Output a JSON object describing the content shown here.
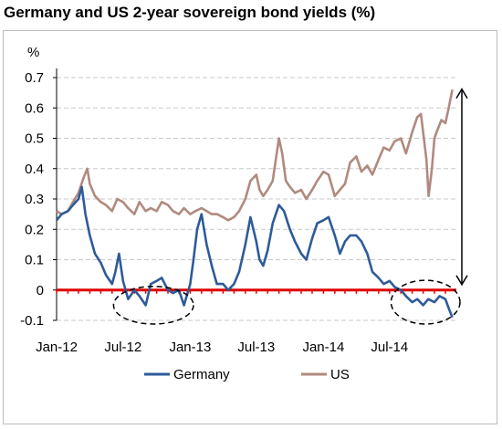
{
  "chart_data": {
    "type": "line",
    "title": "Germany and US 2-year sovereign bond yields (%)",
    "ylabel": "%",
    "xlabel": "",
    "ylim": [
      -0.1,
      0.7
    ],
    "yticks": [
      -0.1,
      0,
      0.1,
      0.2,
      0.3,
      0.4,
      0.5,
      0.6,
      0.7
    ],
    "ytick_labels": [
      "-0.1",
      "0",
      "0.1",
      "0.2",
      "0.3",
      "0.4",
      "0.5",
      "0.6",
      "0.7"
    ],
    "xlim": [
      "2012-01-01",
      "2014-12-31"
    ],
    "xticks": [
      "2012-01-01",
      "2012-07-01",
      "2013-01-01",
      "2013-07-01",
      "2014-01-01",
      "2014-07-01"
    ],
    "xtick_labels": [
      "Jan-12",
      "Jul-12",
      "Jan-13",
      "Jul-13",
      "Jan-14",
      "Jul-14"
    ],
    "grid": "horizontal dashed",
    "legend_position": "bottom",
    "zero_line_color": "#e00000",
    "series": [
      {
        "name": "Germany",
        "color": "#2e5b9a",
        "points": [
          [
            "2012-01-01",
            0.23
          ],
          [
            "2012-01-15",
            0.25
          ],
          [
            "2012-02-01",
            0.26
          ],
          [
            "2012-02-15",
            0.28
          ],
          [
            "2012-03-01",
            0.3
          ],
          [
            "2012-03-10",
            0.34
          ],
          [
            "2012-03-20",
            0.25
          ],
          [
            "2012-04-01",
            0.18
          ],
          [
            "2012-04-15",
            0.12
          ],
          [
            "2012-05-01",
            0.09
          ],
          [
            "2012-05-15",
            0.05
          ],
          [
            "2012-06-01",
            0.02
          ],
          [
            "2012-06-10",
            0.06
          ],
          [
            "2012-06-20",
            0.12
          ],
          [
            "2012-07-01",
            0.03
          ],
          [
            "2012-07-15",
            -0.03
          ],
          [
            "2012-08-01",
            0.0
          ],
          [
            "2012-08-15",
            -0.02
          ],
          [
            "2012-09-01",
            -0.05
          ],
          [
            "2012-09-15",
            0.02
          ],
          [
            "2012-10-01",
            0.03
          ],
          [
            "2012-10-15",
            0.04
          ],
          [
            "2012-11-01",
            0.0
          ],
          [
            "2012-11-15",
            -0.01
          ],
          [
            "2012-12-01",
            0.0
          ],
          [
            "2012-12-15",
            -0.05
          ],
          [
            "2013-01-01",
            0.02
          ],
          [
            "2013-01-10",
            0.1
          ],
          [
            "2013-01-20",
            0.2
          ],
          [
            "2013-02-01",
            0.25
          ],
          [
            "2013-02-15",
            0.15
          ],
          [
            "2013-03-01",
            0.08
          ],
          [
            "2013-03-15",
            0.02
          ],
          [
            "2013-04-01",
            0.02
          ],
          [
            "2013-04-15",
            0.0
          ],
          [
            "2013-05-01",
            0.02
          ],
          [
            "2013-05-15",
            0.06
          ],
          [
            "2013-06-01",
            0.15
          ],
          [
            "2013-06-15",
            0.24
          ],
          [
            "2013-07-01",
            0.16
          ],
          [
            "2013-07-10",
            0.1
          ],
          [
            "2013-07-20",
            0.08
          ],
          [
            "2013-08-01",
            0.13
          ],
          [
            "2013-08-15",
            0.22
          ],
          [
            "2013-09-01",
            0.28
          ],
          [
            "2013-09-15",
            0.26
          ],
          [
            "2013-10-01",
            0.2
          ],
          [
            "2013-10-15",
            0.16
          ],
          [
            "2013-11-01",
            0.12
          ],
          [
            "2013-11-15",
            0.1
          ],
          [
            "2013-12-01",
            0.17
          ],
          [
            "2013-12-15",
            0.22
          ],
          [
            "2014-01-01",
            0.23
          ],
          [
            "2014-01-15",
            0.24
          ],
          [
            "2014-02-01",
            0.18
          ],
          [
            "2014-02-15",
            0.12
          ],
          [
            "2014-03-01",
            0.16
          ],
          [
            "2014-03-15",
            0.18
          ],
          [
            "2014-04-01",
            0.18
          ],
          [
            "2014-04-15",
            0.16
          ],
          [
            "2014-05-01",
            0.12
          ],
          [
            "2014-05-15",
            0.06
          ],
          [
            "2014-06-01",
            0.04
          ],
          [
            "2014-06-15",
            0.02
          ],
          [
            "2014-07-01",
            0.03
          ],
          [
            "2014-07-15",
            0.01
          ],
          [
            "2014-08-01",
            0.0
          ],
          [
            "2014-08-15",
            -0.02
          ],
          [
            "2014-09-01",
            -0.04
          ],
          [
            "2014-09-15",
            -0.03
          ],
          [
            "2014-10-01",
            -0.05
          ],
          [
            "2014-10-15",
            -0.03
          ],
          [
            "2014-11-01",
            -0.04
          ],
          [
            "2014-11-15",
            -0.02
          ],
          [
            "2014-12-01",
            -0.03
          ],
          [
            "2014-12-10",
            -0.06
          ],
          [
            "2014-12-20",
            -0.09
          ]
        ]
      },
      {
        "name": "US",
        "color": "#b08a7e",
        "points": [
          [
            "2012-01-01",
            0.26
          ],
          [
            "2012-01-15",
            0.25
          ],
          [
            "2012-02-01",
            0.26
          ],
          [
            "2012-02-15",
            0.29
          ],
          [
            "2012-03-01",
            0.32
          ],
          [
            "2012-03-15",
            0.37
          ],
          [
            "2012-03-25",
            0.4
          ],
          [
            "2012-04-01",
            0.35
          ],
          [
            "2012-04-15",
            0.31
          ],
          [
            "2012-05-01",
            0.29
          ],
          [
            "2012-05-15",
            0.28
          ],
          [
            "2012-06-01",
            0.26
          ],
          [
            "2012-06-15",
            0.3
          ],
          [
            "2012-07-01",
            0.29
          ],
          [
            "2012-07-15",
            0.27
          ],
          [
            "2012-08-01",
            0.25
          ],
          [
            "2012-08-15",
            0.29
          ],
          [
            "2012-09-01",
            0.26
          ],
          [
            "2012-09-15",
            0.27
          ],
          [
            "2012-10-01",
            0.26
          ],
          [
            "2012-10-15",
            0.29
          ],
          [
            "2012-11-01",
            0.28
          ],
          [
            "2012-11-15",
            0.26
          ],
          [
            "2012-12-01",
            0.25
          ],
          [
            "2012-12-15",
            0.27
          ],
          [
            "2013-01-01",
            0.25
          ],
          [
            "2013-01-15",
            0.26
          ],
          [
            "2013-02-01",
            0.27
          ],
          [
            "2013-02-15",
            0.26
          ],
          [
            "2013-03-01",
            0.25
          ],
          [
            "2013-03-15",
            0.25
          ],
          [
            "2013-04-01",
            0.24
          ],
          [
            "2013-04-15",
            0.23
          ],
          [
            "2013-05-01",
            0.24
          ],
          [
            "2013-05-15",
            0.26
          ],
          [
            "2013-06-01",
            0.3
          ],
          [
            "2013-06-15",
            0.36
          ],
          [
            "2013-07-01",
            0.38
          ],
          [
            "2013-07-10",
            0.33
          ],
          [
            "2013-07-20",
            0.31
          ],
          [
            "2013-08-01",
            0.33
          ],
          [
            "2013-08-15",
            0.36
          ],
          [
            "2013-09-01",
            0.5
          ],
          [
            "2013-09-10",
            0.45
          ],
          [
            "2013-09-20",
            0.36
          ],
          [
            "2013-10-01",
            0.34
          ],
          [
            "2013-10-15",
            0.32
          ],
          [
            "2013-11-01",
            0.33
          ],
          [
            "2013-11-15",
            0.3
          ],
          [
            "2013-12-01",
            0.33
          ],
          [
            "2013-12-15",
            0.36
          ],
          [
            "2014-01-01",
            0.39
          ],
          [
            "2014-01-15",
            0.38
          ],
          [
            "2014-02-01",
            0.31
          ],
          [
            "2014-02-15",
            0.33
          ],
          [
            "2014-03-01",
            0.35
          ],
          [
            "2014-03-15",
            0.42
          ],
          [
            "2014-04-01",
            0.44
          ],
          [
            "2014-04-15",
            0.39
          ],
          [
            "2014-05-01",
            0.41
          ],
          [
            "2014-05-15",
            0.38
          ],
          [
            "2014-06-01",
            0.43
          ],
          [
            "2014-06-15",
            0.47
          ],
          [
            "2014-07-01",
            0.46
          ],
          [
            "2014-07-15",
            0.49
          ],
          [
            "2014-08-01",
            0.5
          ],
          [
            "2014-08-15",
            0.45
          ],
          [
            "2014-09-01",
            0.52
          ],
          [
            "2014-09-15",
            0.57
          ],
          [
            "2014-09-25",
            0.58
          ],
          [
            "2014-10-01",
            0.52
          ],
          [
            "2014-10-10",
            0.43
          ],
          [
            "2014-10-16",
            0.31
          ],
          [
            "2014-10-25",
            0.4
          ],
          [
            "2014-11-01",
            0.5
          ],
          [
            "2014-11-10",
            0.53
          ],
          [
            "2014-11-20",
            0.56
          ],
          [
            "2014-12-01",
            0.55
          ],
          [
            "2014-12-10",
            0.6
          ],
          [
            "2014-12-20",
            0.66
          ]
        ]
      }
    ],
    "annotations": [
      {
        "type": "dashed-ellipse",
        "x_range": [
          "2012-06-15",
          "2012-12-31"
        ],
        "y_range": [
          -0.1,
          0.0
        ]
      },
      {
        "type": "dashed-ellipse",
        "x_range": [
          "2014-07-15",
          "2014-12-31"
        ],
        "y_range": [
          -0.1,
          0.02
        ]
      },
      {
        "type": "double-arrow",
        "x": "2014-12-31",
        "y_range": [
          0.0,
          0.65
        ]
      }
    ]
  }
}
